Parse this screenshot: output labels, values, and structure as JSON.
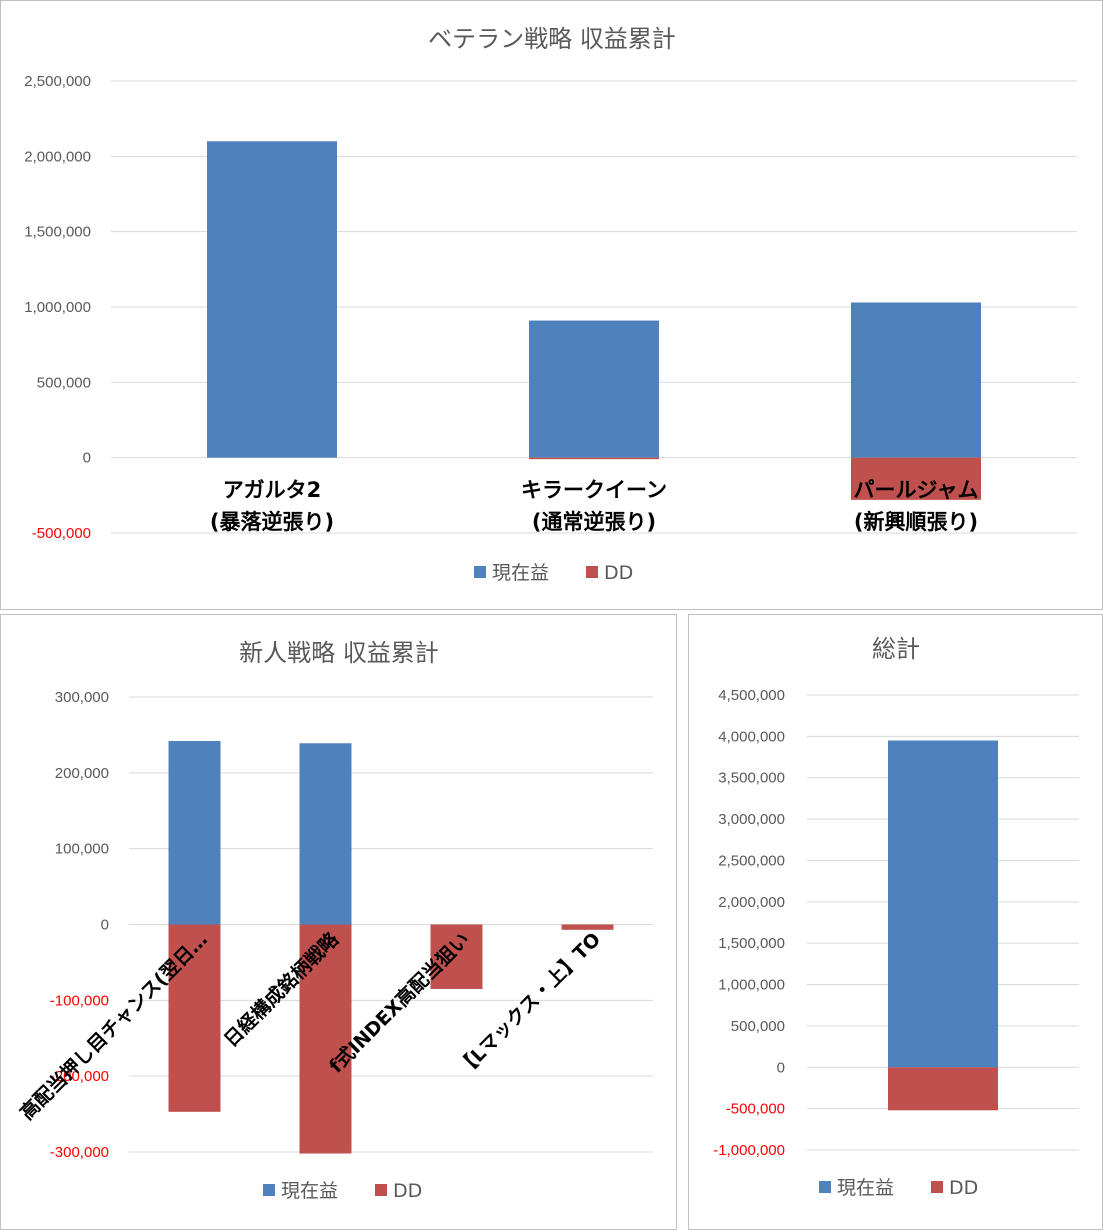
{
  "colors": {
    "profit": "#4f81bd",
    "dd": "#c0504d",
    "grid": "#d9d9d9",
    "axis_text": "#595959",
    "negative_tick": "#ff0000"
  },
  "chart_data": [
    {
      "type": "bar",
      "stacked": true,
      "title": "ベテラン戦略 収益累計",
      "categories": [
        [
          "アガルタ2",
          "(暴落逆張り)"
        ],
        [
          "キラークイーン",
          "(通常逆張り)"
        ],
        [
          "パールジャム",
          "(新興順張り)"
        ]
      ],
      "series": [
        {
          "name": "現在益",
          "color": "#4f81bd",
          "values": [
            2100000,
            910000,
            1030000
          ]
        },
        {
          "name": "DD",
          "color": "#c0504d",
          "values": [
            0,
            -10000,
            -280000
          ]
        }
      ],
      "ylim": [
        -500000,
        2500000
      ],
      "yticks": [
        2500000,
        2000000,
        1500000,
        1000000,
        500000,
        0,
        -500000
      ],
      "ytick_labels": [
        "2,500,000",
        "2,000,000",
        "1,500,000",
        "1,000,000",
        "500,000",
        "0",
        "-500,000"
      ],
      "grid": true,
      "legend": "bottom"
    },
    {
      "type": "bar",
      "stacked": true,
      "title": "新人戦略 収益累計",
      "categories": [
        "高配当押し目チャンス(翌日…",
        "日経構成銘柄戦略",
        "f式INDEX高配当狙い",
        "【Lマックス・上】TO"
      ],
      "series": [
        {
          "name": "現在益",
          "color": "#4f81bd",
          "values": [
            242000,
            239000,
            0,
            0
          ]
        },
        {
          "name": "DD",
          "color": "#c0504d",
          "values": [
            -247000,
            -302000,
            -85000,
            -7000
          ]
        }
      ],
      "ylim": [
        -300000,
        300000
      ],
      "yticks": [
        300000,
        200000,
        100000,
        0,
        -100000,
        -200000,
        -300000
      ],
      "ytick_labels": [
        "300,000",
        "200,000",
        "100,000",
        "0",
        "-100,000",
        "-200,000",
        "-300,000"
      ],
      "grid": true,
      "legend": "bottom"
    },
    {
      "type": "bar",
      "stacked": true,
      "title": "総計",
      "categories": [
        ""
      ],
      "series": [
        {
          "name": "現在益",
          "color": "#4f81bd",
          "values": [
            3950000
          ]
        },
        {
          "name": "DD",
          "color": "#c0504d",
          "values": [
            -520000
          ]
        }
      ],
      "ylim": [
        -1000000,
        4500000
      ],
      "yticks": [
        4500000,
        4000000,
        3500000,
        3000000,
        2500000,
        2000000,
        1500000,
        1000000,
        500000,
        0,
        -500000,
        -1000000
      ],
      "ytick_labels": [
        "4,500,000",
        "4,000,000",
        "3,500,000",
        "3,000,000",
        "2,500,000",
        "2,000,000",
        "1,500,000",
        "1,000,000",
        "500,000",
        "0",
        "-500,000",
        "-1,000,000"
      ],
      "grid": true,
      "legend": "bottom"
    }
  ]
}
